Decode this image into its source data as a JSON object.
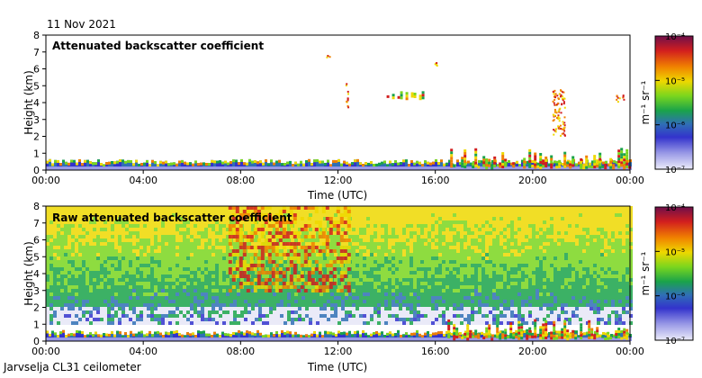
{
  "date": "11 Nov 2021",
  "site": "Jarvselja CL31 ceilometer",
  "colors": {
    "scale": [
      "#e6e6f7",
      "#9999e6",
      "#3333cc",
      "#2f6fb5",
      "#1aa34a",
      "#7ad61e",
      "#eed800",
      "#f08000",
      "#d21e1e",
      "#7a1230"
    ]
  },
  "chart_data": [
    {
      "type": "heatmap",
      "title": "Attenuated backscatter coefficient",
      "xlabel": "Time (UTC)",
      "ylabel": "Height (km)",
      "x_ticks": [
        "00:00",
        "04:00",
        "08:00",
        "12:00",
        "16:00",
        "20:00",
        "00:00"
      ],
      "y_ticks": [
        "0",
        "1",
        "2",
        "3",
        "4",
        "5",
        "6",
        "7",
        "8"
      ],
      "ylim": [
        0,
        8
      ],
      "xlim_hours": [
        0,
        24
      ],
      "colorbar": {
        "label": "m⁻¹ sr⁻¹",
        "ticks": [
          "10⁻⁷",
          "10⁻⁶",
          "10⁻⁵",
          "10⁻⁴"
        ],
        "scale": "log"
      },
      "features": [
        {
          "kind": "boundary_layer",
          "t_start": 0,
          "t_end": 24,
          "top_km": 0.5
        },
        {
          "kind": "cloud",
          "t_hour": 11.5,
          "height_km": 6.8
        },
        {
          "kind": "cloud",
          "t_start": 12.3,
          "t_end": 12.4,
          "height_km": [
            3.5,
            5.2
          ]
        },
        {
          "kind": "cloud",
          "t_start": 14.0,
          "t_end": 15.7,
          "height_km": [
            4.3,
            4.9
          ]
        },
        {
          "kind": "cloud",
          "t_start": 15.9,
          "t_end": 16.1,
          "height_km": [
            6.2,
            6.6
          ]
        },
        {
          "kind": "cloud",
          "t_start": 16.5,
          "t_end": 24,
          "height_km": [
            0.2,
            1.8
          ]
        },
        {
          "kind": "cloud",
          "t_start": 20.8,
          "t_end": 21.3,
          "height_km": [
            2.0,
            4.8
          ]
        },
        {
          "kind": "cloud",
          "t_start": 23.4,
          "t_end": 23.8,
          "height_km": [
            4.1,
            4.5
          ]
        }
      ]
    },
    {
      "type": "heatmap",
      "title": "Raw attenuated backscatter coefficient",
      "xlabel": "Time (UTC)",
      "ylabel": "Height (km)",
      "x_ticks": [
        "00:00",
        "04:00",
        "08:00",
        "12:00",
        "16:00",
        "20:00",
        "00:00"
      ],
      "y_ticks": [
        "0",
        "1",
        "2",
        "3",
        "4",
        "5",
        "6",
        "7",
        "8"
      ],
      "ylim": [
        0,
        8
      ],
      "xlim_hours": [
        0,
        24
      ],
      "colorbar": {
        "label": "m⁻¹ sr⁻¹",
        "ticks": [
          "10⁻⁷",
          "10⁻⁶",
          "10⁻⁵",
          "10⁻⁴"
        ],
        "scale": "log"
      },
      "features": [
        {
          "kind": "noise_field",
          "t_start": 0,
          "t_end": 24,
          "height_km": [
            1.0,
            8.0
          ]
        },
        {
          "kind": "high_noise_region",
          "t_start": 7.5,
          "t_end": 12.5,
          "height_km": [
            3.0,
            8.0
          ]
        },
        {
          "kind": "boundary_layer",
          "t_start": 0,
          "t_end": 24,
          "top_km": 0.5
        },
        {
          "kind": "cloud",
          "t_start": 16.5,
          "t_end": 24,
          "height_km": [
            0.2,
            1.8
          ]
        }
      ]
    }
  ]
}
